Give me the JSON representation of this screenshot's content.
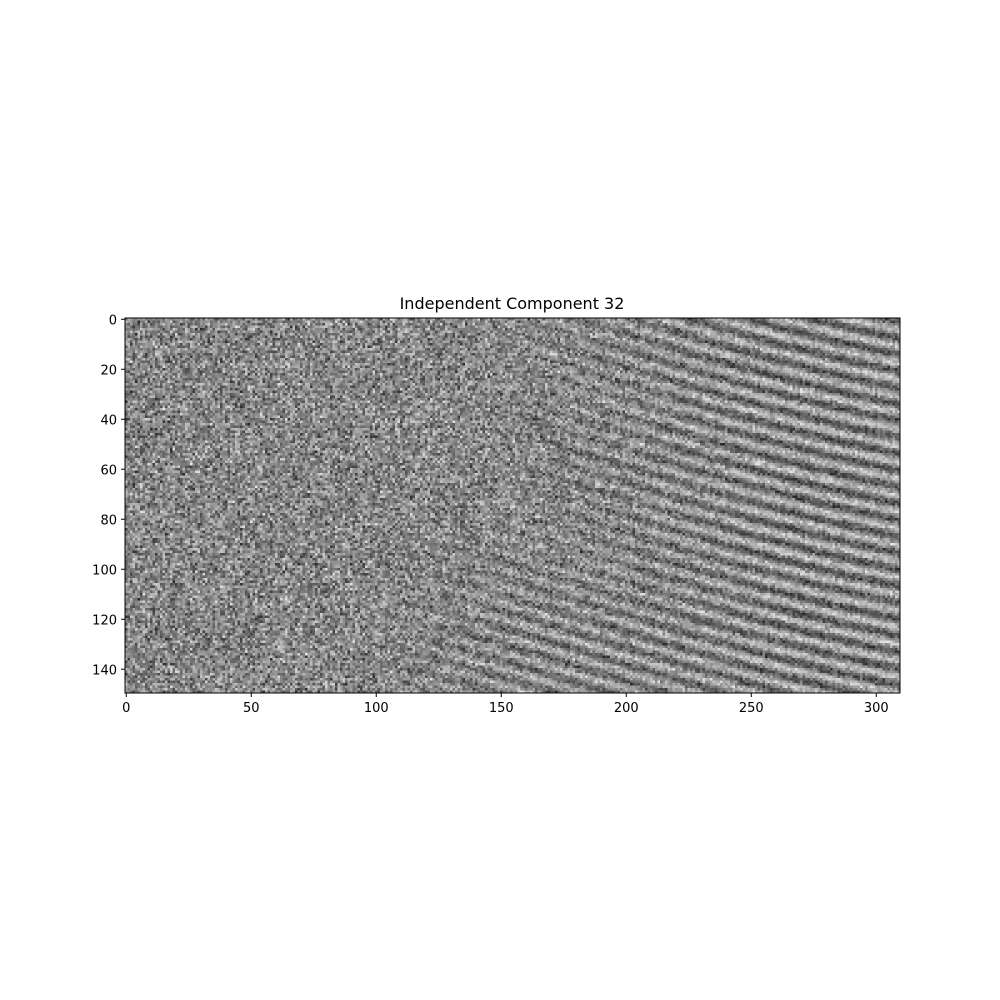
{
  "chart_data": {
    "type": "heatmap",
    "title": "Independent Component 32",
    "colormap": "gray",
    "xlabel": "",
    "ylabel": "",
    "image_shape": [
      150,
      310
    ],
    "xlim": [
      -0.5,
      309.5
    ],
    "ylim": [
      149.5,
      -0.5
    ],
    "x_ticks": [
      0,
      50,
      100,
      150,
      200,
      250,
      300
    ],
    "y_ticks": [
      0,
      20,
      40,
      60,
      80,
      100,
      120,
      140
    ],
    "x_tick_labels": [
      "0",
      "50",
      "100",
      "150",
      "200",
      "250",
      "300"
    ],
    "y_tick_labels": [
      "0",
      "20",
      "40",
      "60",
      "80",
      "100",
      "120",
      "140"
    ],
    "grid": false,
    "description_note": "Grayscale noise-like component with diagonal stripe texture in the right half"
  }
}
